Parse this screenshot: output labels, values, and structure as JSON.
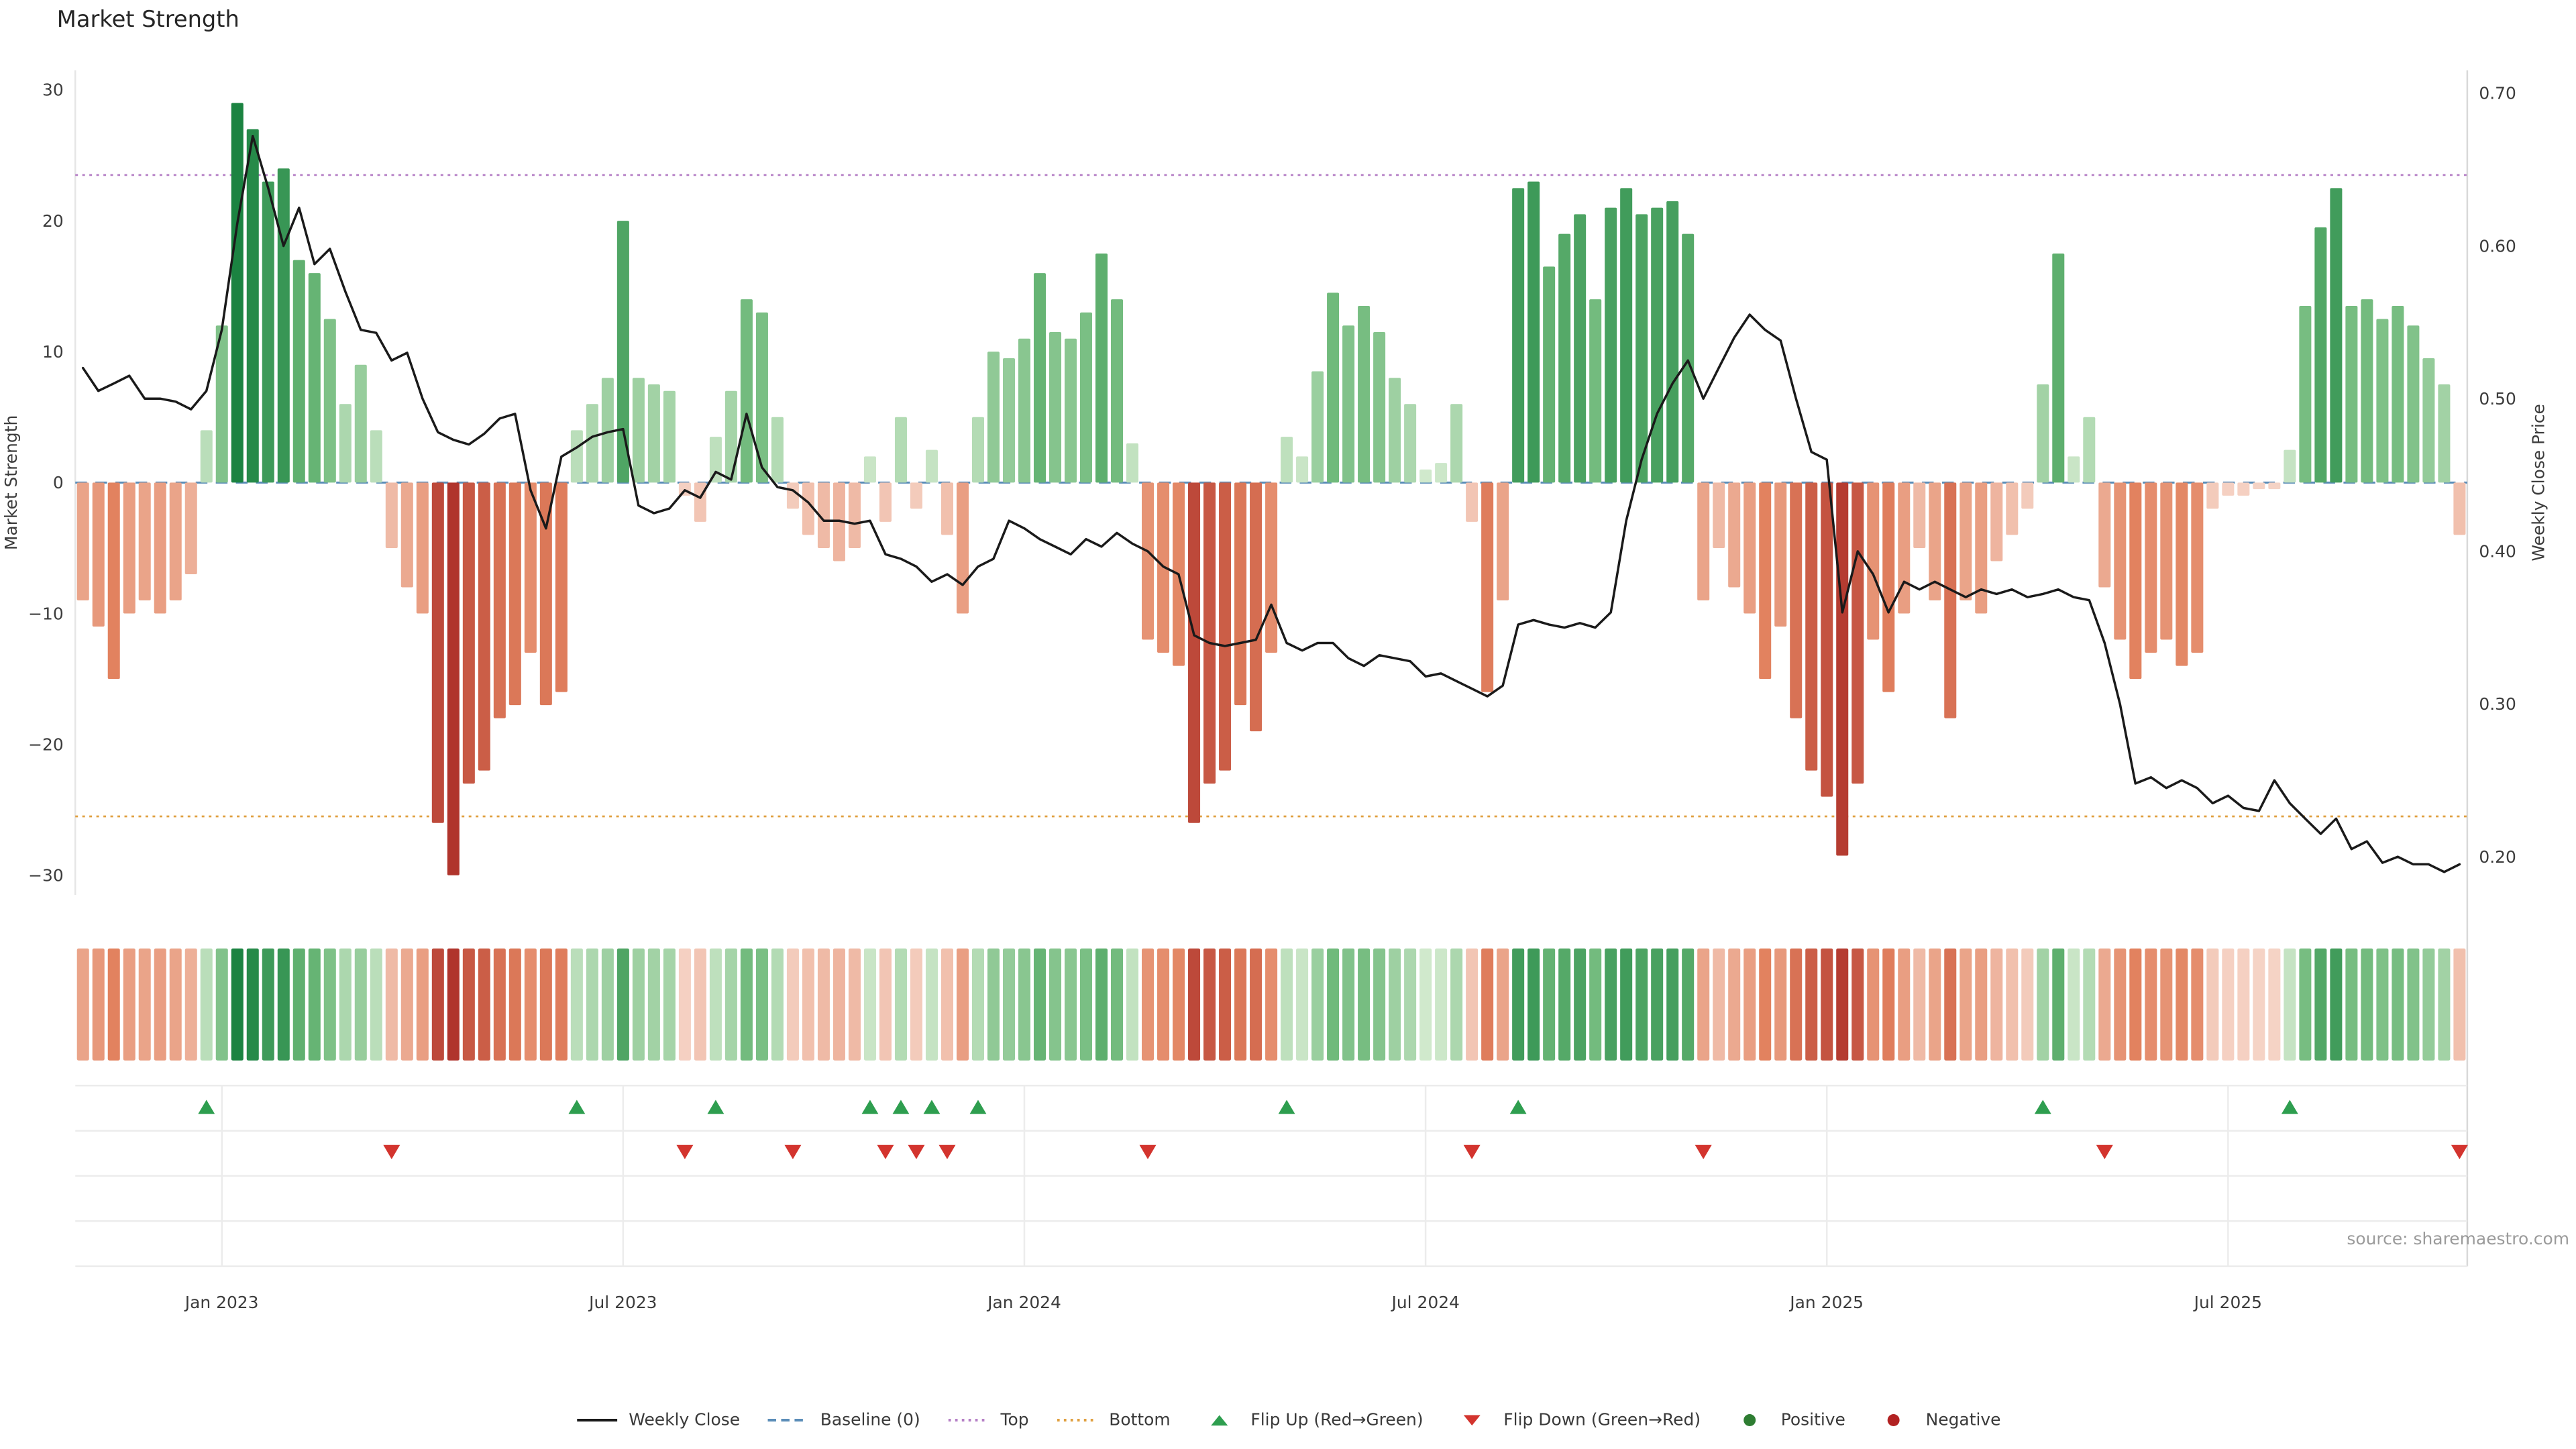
{
  "page": {
    "title": "Market Strength",
    "source": "source: sharemaestro.com"
  },
  "colors": {
    "positive_light": "#d7ecd2",
    "positive_mid": "#6cb878",
    "positive_dark": "#157f3d",
    "negative_light": "#f6d6c9",
    "negative_mid": "#e2825f",
    "negative_dark": "#b0342c",
    "line": "#1a1a1a",
    "baseline": "#5b8db8",
    "top": "#b57fc6",
    "bottom": "#e0a040",
    "flip_up": "#2e9e4f",
    "flip_down": "#d3342e",
    "positive_dot": "#2e7d32",
    "negative_dot": "#b22222",
    "grid": "#ececec",
    "spine": "#d9d9d9",
    "tick_text": "#3c3c3c"
  },
  "chart_data": {
    "type": "bar",
    "title": "Market Strength",
    "subtitle": "",
    "grid": "off-main-panel, faint-grid-marker-panel",
    "legend_position": "bottom-center",
    "x_axis": {
      "tick_weeks": [
        9,
        35,
        61,
        87,
        113,
        139
      ],
      "tick_labels": [
        "Jan 2023",
        "Jul 2023",
        "Jan 2024",
        "Jul 2024",
        "Jan 2025",
        "Jul 2025"
      ]
    },
    "left_axis": {
      "label": "Market Strength",
      "ticks": [
        30,
        20,
        10,
        0,
        -10,
        -20,
        -30
      ],
      "tick_labels": [
        "30",
        "20",
        "10",
        "0",
        "−10",
        "−20",
        "−30"
      ],
      "range": [
        -31.5,
        31.5
      ]
    },
    "right_axis": {
      "label": "Weekly Close Price",
      "ticks": [
        0.7,
        0.6,
        0.5,
        0.4,
        0.3,
        0.2
      ],
      "tick_labels": [
        "0.70",
        "0.60",
        "0.50",
        "0.40",
        "0.30",
        "0.20"
      ],
      "range": [
        0.175,
        0.715
      ]
    },
    "baseline": 0,
    "top": 23.5,
    "bottom": -25.5,
    "strength": [
      -9,
      -11,
      -15,
      -10,
      -9,
      -10,
      -9,
      -7,
      4,
      12,
      29,
      27,
      23,
      24,
      17,
      16,
      12.5,
      6,
      9,
      4,
      -5,
      -8,
      -10,
      -26,
      -30,
      -23,
      -22,
      -18,
      -17,
      -13,
      -17,
      -16,
      4,
      6,
      8,
      20,
      8,
      7.5,
      7,
      -1,
      -3,
      3.5,
      7,
      14,
      13,
      5,
      -2,
      -4,
      -5,
      -6,
      -5,
      2,
      -3,
      5,
      -2,
      2.5,
      -4,
      -10,
      5,
      10,
      9.5,
      11,
      16,
      11.5,
      11,
      13,
      17.5,
      14,
      3,
      -12,
      -13,
      -14,
      -26,
      -23,
      -22,
      -17,
      -19,
      -13,
      3.5,
      2,
      8.5,
      14.5,
      12,
      13.5,
      11.5,
      8,
      6,
      1,
      1.5,
      6,
      -3,
      -16,
      -9,
      22.5,
      23,
      16.5,
      19,
      20.5,
      14,
      21,
      22.5,
      20.5,
      21,
      21.5,
      19,
      -9,
      -5,
      -8,
      -10,
      -15,
      -11,
      -18,
      -22,
      -24,
      -28.5,
      -23,
      -12,
      -16,
      -10,
      -5,
      -9,
      -18,
      -9,
      -10,
      -6,
      -4,
      -2,
      7.5,
      17.5,
      2,
      5,
      -8,
      -12,
      -15,
      -13,
      -12,
      -14,
      -13,
      -2,
      -1,
      -1,
      -0.5,
      -0.5,
      2.5,
      13.5,
      19.5,
      22.5,
      13.5,
      14,
      12.5,
      13.5,
      12,
      9.5,
      7.5,
      -4
    ],
    "weekly_close": [
      0.52,
      0.505,
      0.51,
      0.515,
      0.5,
      0.5,
      0.498,
      0.493,
      0.505,
      0.545,
      0.615,
      0.672,
      0.638,
      0.6,
      0.625,
      0.588,
      0.598,
      0.57,
      0.545,
      0.543,
      0.525,
      0.53,
      0.5,
      0.478,
      0.473,
      0.47,
      0.477,
      0.487,
      0.49,
      0.44,
      0.415,
      0.462,
      0.468,
      0.475,
      0.478,
      0.48,
      0.43,
      0.425,
      0.428,
      0.44,
      0.435,
      0.452,
      0.447,
      0.49,
      0.455,
      0.442,
      0.44,
      0.432,
      0.42,
      0.42,
      0.418,
      0.42,
      0.398,
      0.395,
      0.39,
      0.38,
      0.385,
      0.378,
      0.39,
      0.395,
      0.42,
      0.415,
      0.408,
      0.403,
      0.398,
      0.408,
      0.403,
      0.412,
      0.405,
      0.4,
      0.39,
      0.385,
      0.345,
      0.34,
      0.338,
      0.34,
      0.342,
      0.365,
      0.34,
      0.335,
      0.34,
      0.34,
      0.33,
      0.325,
      0.332,
      0.33,
      0.328,
      0.318,
      0.32,
      0.315,
      0.31,
      0.305,
      0.312,
      0.352,
      0.355,
      0.352,
      0.35,
      0.353,
      0.35,
      0.36,
      0.42,
      0.46,
      0.49,
      0.51,
      0.525,
      0.5,
      0.52,
      0.54,
      0.555,
      0.545,
      0.538,
      0.5,
      0.465,
      0.46,
      0.36,
      0.4,
      0.385,
      0.36,
      0.38,
      0.375,
      0.38,
      0.375,
      0.37,
      0.375,
      0.372,
      0.375,
      0.37,
      0.372,
      0.375,
      0.37,
      0.368,
      0.34,
      0.3,
      0.248,
      0.252,
      0.245,
      0.25,
      0.245,
      0.235,
      0.24,
      0.232,
      0.23,
      0.25,
      0.235,
      0.225,
      0.215,
      0.225,
      0.205,
      0.21,
      0.196,
      0.2,
      0.195,
      0.195,
      0.19,
      0.195
    ],
    "flip_up_weeks": [
      8,
      32,
      41,
      51,
      53,
      55,
      58,
      78,
      93,
      127,
      143
    ],
    "flip_down_weeks": [
      20,
      39,
      46,
      52,
      54,
      56,
      69,
      90,
      105,
      131,
      154
    ]
  },
  "legend": {
    "items": [
      {
        "label": "Weekly Close",
        "marker": "line",
        "color": "#1a1a1a"
      },
      {
        "label": "Baseline (0)",
        "marker": "dashed-line",
        "color": "#5b8db8"
      },
      {
        "label": "Top",
        "marker": "dotted-line",
        "color": "#b57fc6"
      },
      {
        "label": "Bottom",
        "marker": "dotted-line",
        "color": "#e0a040"
      },
      {
        "label": "Flip Up (Red→Green)",
        "marker": "triangle-up",
        "color": "#2e9e4f"
      },
      {
        "label": "Flip Down (Green→Red)",
        "marker": "triangle-down",
        "color": "#d3342e"
      },
      {
        "label": "Positive",
        "marker": "dot",
        "color": "#2e7d32"
      },
      {
        "label": "Negative",
        "marker": "dot",
        "color": "#b22222"
      }
    ]
  }
}
